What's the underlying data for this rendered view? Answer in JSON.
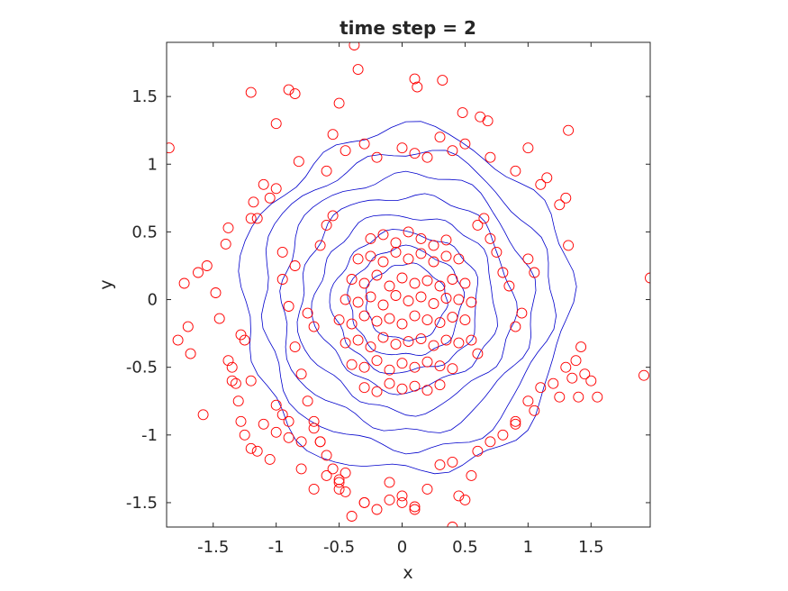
{
  "chart_data": {
    "type": "scatter",
    "title": "time step = 2",
    "xlabel": "x",
    "ylabel": "y",
    "xlim": [
      -1.87,
      1.97
    ],
    "ylim": [
      -1.68,
      1.9
    ],
    "xticks": [
      -1.5,
      -1,
      -0.5,
      0,
      0.5,
      1,
      1.5
    ],
    "yticks": [
      -1.5,
      -1,
      -0.5,
      0,
      0.5,
      1,
      1.5
    ],
    "xtick_labels": [
      "-1.5",
      "-1",
      "-0.5",
      "0",
      "0.5",
      "1",
      "1.5"
    ],
    "ytick_labels": [
      "-1.5",
      "-1",
      "-0.5",
      "0",
      "0.5",
      "1",
      "1.5"
    ],
    "grid": false,
    "series": [
      {
        "marker": "circle-open",
        "color": "#ff0000",
        "x": [
          -1.85,
          -1.73,
          -1.68,
          -1.62,
          -1.58,
          -1.55,
          -1.48,
          -1.45,
          -1.4,
          -1.38,
          -1.35,
          -1.32,
          -1.28,
          -1.25,
          -1.2,
          -1.18,
          -1.15,
          -1.1,
          -1.05,
          -1.0,
          -0.95,
          -0.9,
          -0.85,
          -0.8,
          -0.75,
          -0.7,
          -0.65,
          -0.6,
          -0.55,
          -0.5,
          -1.78,
          -1.7,
          -1.38,
          -1.35,
          -1.3,
          -1.28,
          -1.25,
          -1.2,
          -1.15,
          -1.1,
          -1.05,
          -1.0,
          -0.95,
          -0.9,
          -0.8,
          -0.7,
          -0.6,
          -0.5,
          -0.45,
          -0.4,
          -0.3,
          -0.2,
          -0.1,
          0.0,
          0.1,
          0.2,
          0.3,
          0.4,
          0.5,
          0.6,
          0.7,
          0.8,
          0.9,
          1.0,
          1.1,
          1.2,
          1.3,
          1.35,
          1.4,
          1.45,
          1.5,
          1.55,
          1.92,
          1.97,
          -1.2,
          -1.0,
          -0.9,
          -0.85,
          -0.5,
          -0.35,
          -0.38,
          0.1,
          0.12,
          0.32,
          0.48,
          0.62,
          0.68,
          1.0,
          1.32,
          1.15,
          -0.82,
          -0.6,
          -0.55,
          -0.45,
          -0.3,
          -0.2,
          0.0,
          0.1,
          0.2,
          0.3,
          0.4,
          0.5,
          0.7,
          0.9,
          1.1,
          1.25,
          1.3,
          1.32,
          -0.8,
          -0.5,
          -0.1,
          0.0,
          0.1,
          0.45,
          0.55,
          0.4,
          -0.3,
          -0.45,
          -1.2,
          -1.0,
          -0.9,
          -0.7,
          -0.65,
          0.9,
          1.05,
          1.25,
          1.38,
          1.42,
          -0.25,
          -0.15,
          -0.05,
          0.05,
          0.15,
          0.25,
          0.35,
          -0.35,
          -0.25,
          -0.15,
          -0.05,
          0.05,
          0.15,
          0.25,
          0.35,
          0.45,
          -0.4,
          -0.3,
          -0.2,
          -0.1,
          0.0,
          0.1,
          0.2,
          0.3,
          0.4,
          0.5,
          -0.45,
          -0.35,
          -0.25,
          -0.15,
          -0.05,
          0.05,
          0.15,
          0.25,
          0.35,
          0.45,
          0.55,
          -0.5,
          -0.4,
          -0.3,
          -0.2,
          -0.1,
          0.0,
          0.1,
          0.2,
          0.3,
          0.4,
          0.5,
          -0.45,
          -0.35,
          -0.25,
          -0.15,
          -0.05,
          0.05,
          0.15,
          0.25,
          0.35,
          0.45,
          -0.4,
          -0.3,
          -0.2,
          -0.1,
          0.0,
          0.1,
          0.2,
          0.3,
          0.4,
          -0.3,
          -0.2,
          -0.1,
          0.0,
          0.1,
          0.2,
          0.3,
          -0.6,
          -0.55,
          -0.65,
          0.6,
          0.65,
          0.7,
          0.75,
          0.8,
          0.85,
          -0.75,
          -0.7,
          0.55,
          0.6,
          0.9,
          0.95,
          -0.95,
          -0.85,
          1.0,
          1.05
        ],
        "y": [
          1.12,
          0.12,
          -0.4,
          0.2,
          -0.85,
          0.25,
          0.05,
          -0.14,
          0.41,
          0.53,
          -0.5,
          -0.62,
          -0.26,
          -0.3,
          0.6,
          0.72,
          0.6,
          0.85,
          0.75,
          0.82,
          0.15,
          -0.05,
          -0.35,
          -0.55,
          -0.75,
          -0.95,
          -1.05,
          -1.15,
          -1.25,
          -1.35,
          -0.3,
          -0.2,
          -0.45,
          -0.6,
          -0.75,
          -0.9,
          -1.0,
          -1.1,
          -1.12,
          -0.92,
          -1.18,
          -0.98,
          -0.85,
          -1.02,
          -1.05,
          -1.4,
          -1.3,
          -1.33,
          -1.28,
          -1.6,
          -1.5,
          -1.55,
          -1.48,
          -1.45,
          -1.53,
          -1.4,
          -1.22,
          -1.68,
          -1.48,
          -1.12,
          -1.05,
          -1.0,
          -0.9,
          -0.75,
          -0.65,
          -0.62,
          -0.5,
          -0.58,
          -0.72,
          -0.55,
          -0.6,
          -0.72,
          -0.56,
          0.16,
          1.53,
          1.3,
          1.55,
          1.52,
          1.45,
          1.7,
          1.88,
          1.63,
          1.57,
          1.62,
          1.38,
          1.35,
          1.32,
          1.12,
          1.25,
          0.9,
          1.02,
          0.95,
          1.22,
          1.1,
          1.15,
          1.05,
          1.12,
          1.08,
          1.05,
          1.2,
          1.1,
          1.15,
          1.05,
          0.95,
          0.85,
          0.7,
          0.75,
          0.4,
          -1.25,
          -1.4,
          -1.35,
          -1.5,
          -1.55,
          -1.45,
          -1.3,
          -1.2,
          -1.5,
          -1.42,
          -0.6,
          -0.78,
          -0.9,
          -0.9,
          -1.05,
          -0.92,
          -0.82,
          -0.72,
          -0.45,
          -0.35,
          0.45,
          0.48,
          0.42,
          0.5,
          0.45,
          0.4,
          0.44,
          0.3,
          0.32,
          0.28,
          0.35,
          0.3,
          0.34,
          0.28,
          0.32,
          0.3,
          0.15,
          0.12,
          0.18,
          0.1,
          0.16,
          0.12,
          0.14,
          0.1,
          0.15,
          0.12,
          0.0,
          -0.02,
          0.02,
          -0.04,
          0.03,
          -0.01,
          0.02,
          -0.03,
          0.01,
          0.0,
          -0.02,
          -0.15,
          -0.18,
          -0.12,
          -0.16,
          -0.14,
          -0.18,
          -0.12,
          -0.15,
          -0.17,
          -0.13,
          -0.15,
          -0.32,
          -0.3,
          -0.35,
          -0.28,
          -0.33,
          -0.31,
          -0.29,
          -0.34,
          -0.3,
          -0.32,
          -0.48,
          -0.5,
          -0.45,
          -0.52,
          -0.47,
          -0.5,
          -0.46,
          -0.49,
          -0.51,
          -0.65,
          -0.68,
          -0.62,
          -0.66,
          -0.64,
          -0.67,
          -0.63,
          0.55,
          0.62,
          0.4,
          0.55,
          0.6,
          0.45,
          0.35,
          0.2,
          0.1,
          -0.1,
          -0.2,
          -0.3,
          -0.4,
          -0.2,
          -0.1,
          0.35,
          0.25,
          0.3,
          0.2
        ]
      }
    ],
    "contours": {
      "color": "#0000cc",
      "center": [
        0.03,
        -0.02
      ],
      "radii": [
        [
          1.3,
          1.27
        ],
        [
          1.15,
          1.1
        ],
        [
          1.0,
          0.95
        ],
        [
          0.85,
          0.8
        ],
        [
          0.72,
          0.65
        ],
        [
          0.58,
          0.52
        ],
        [
          0.45,
          0.4
        ],
        [
          0.32,
          0.28
        ]
      ]
    }
  }
}
